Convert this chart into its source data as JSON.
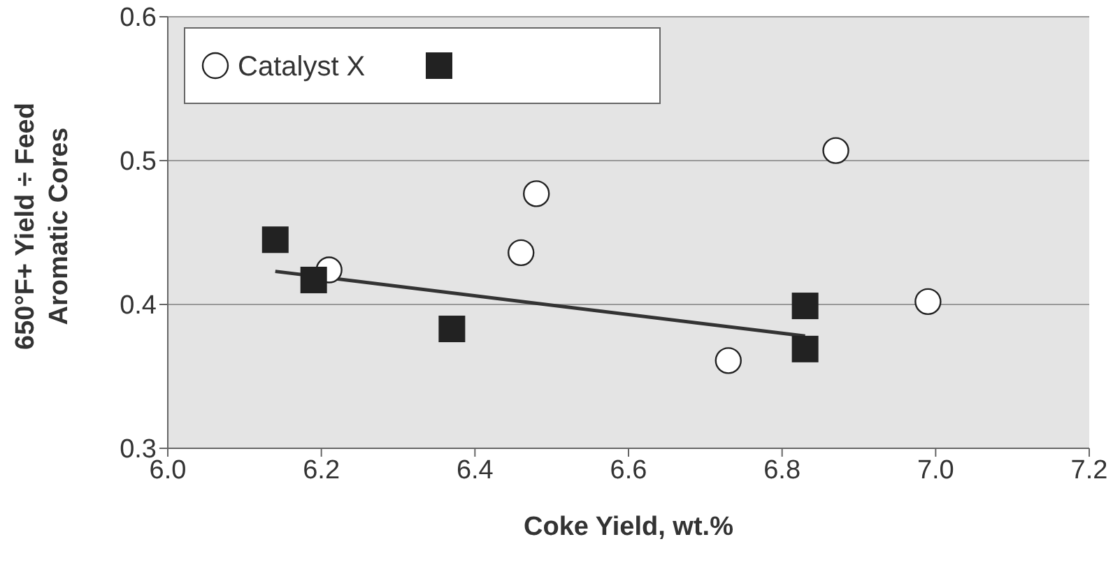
{
  "chart_data": {
    "type": "scatter",
    "xlabel": "Coke Yield, wt.%",
    "ylabel": "650°F+ Yield ÷ Feed Aromatic Cores",
    "xlim": [
      6.0,
      7.2
    ],
    "xticks": [
      {
        "value": 6.0,
        "label": "6.0"
      },
      {
        "value": 6.2,
        "label": "6.2"
      },
      {
        "value": 6.4,
        "label": "6.4"
      },
      {
        "value": 6.6,
        "label": "6.6"
      },
      {
        "value": 6.8,
        "label": "6.8"
      },
      {
        "value": 7.0,
        "label": "7.0"
      },
      {
        "value": 7.2,
        "label": "7.2"
      }
    ],
    "ylim": [
      0.3,
      0.6
    ],
    "yticks": [
      0.3,
      0.4,
      0.5,
      0.6
    ],
    "grid": "y",
    "legend": "top left",
    "series": [
      {
        "name": "Catalyst X",
        "color": "#ffffff",
        "marker": "circle",
        "x": [
          6.21,
          6.46,
          6.48,
          6.73,
          6.87,
          6.99
        ],
        "values": [
          0.424,
          0.436,
          0.477,
          0.361,
          0.507,
          0.402
        ]
      },
      {
        "color": "#222222",
        "marker": "square",
        "x": [
          6.14,
          6.19,
          6.37,
          6.83,
          6.83
        ],
        "values": [
          0.445,
          0.417,
          0.383,
          0.399,
          0.369
        ]
      },
      {
        "type": "line",
        "color": "#333333",
        "marker": "none",
        "x": [
          6.14,
          6.83
        ],
        "values": [
          0.423,
          0.378
        ]
      }
    ]
  }
}
